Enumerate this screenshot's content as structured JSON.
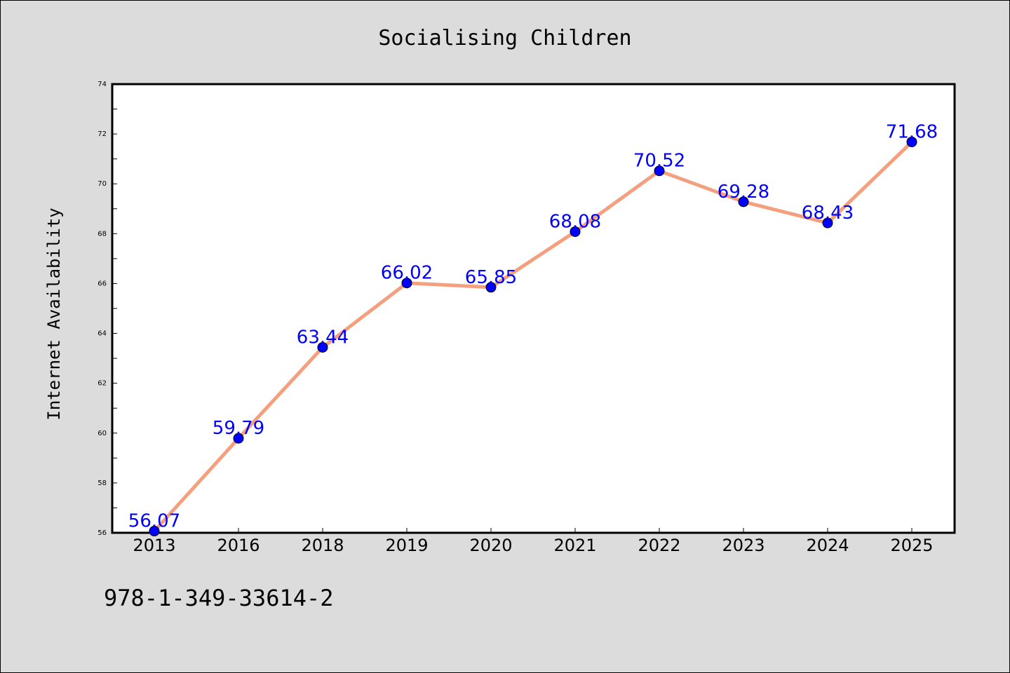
{
  "chart_data": {
    "type": "line",
    "title": "Socialising Children",
    "xlabel": "",
    "ylabel": "Internet Availability",
    "categories": [
      "2013",
      "2016",
      "2018",
      "2019",
      "2020",
      "2021",
      "2022",
      "2023",
      "2024",
      "2025"
    ],
    "series": [
      {
        "values": [
          56.07,
          59.79,
          63.44,
          66.02,
          65.85,
          68.08,
          70.52,
          69.28,
          68.43,
          71.68
        ],
        "labels": [
          "56.07",
          "59.79",
          "63.44",
          "66.02",
          "65.85",
          "68.08",
          "70.52",
          "69.28",
          "68.43",
          "71.68"
        ],
        "line_color": "#f4a07e",
        "marker_color": "#0000ff"
      }
    ],
    "ylim": [
      56,
      74
    ],
    "yticks": [
      "56",
      "58",
      "60",
      "62",
      "64",
      "66",
      "68",
      "70",
      "72",
      "74"
    ],
    "grid": false,
    "legend": "none"
  },
  "footnote": "978-1-349-33614-2",
  "colors": {
    "background": "#dcdcdc",
    "plot_background": "#ffffff",
    "line": "#f4a07e",
    "marker": "#0000ff",
    "data_label": "#0000ff"
  }
}
